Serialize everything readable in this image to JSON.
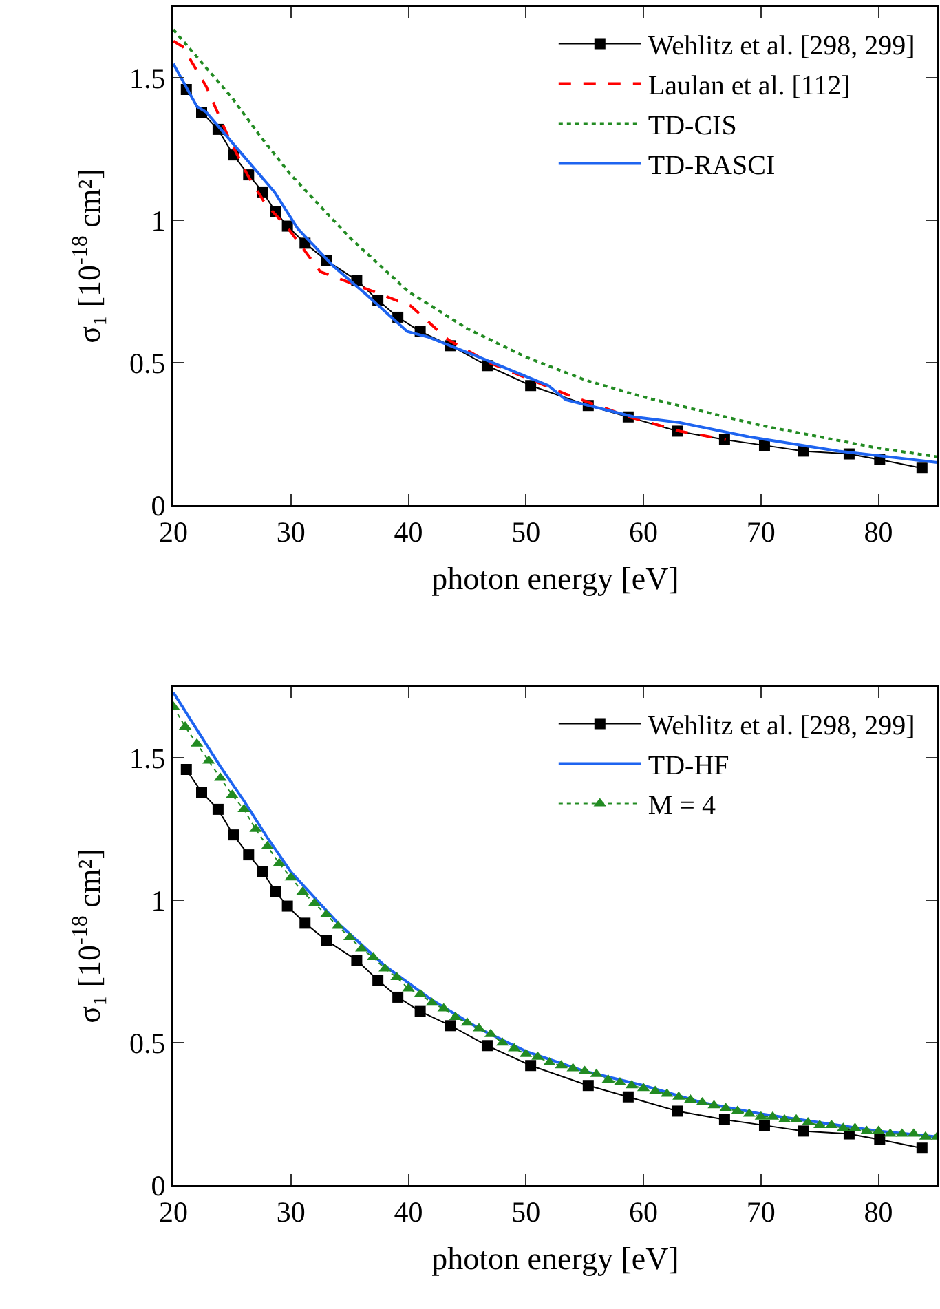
{
  "chart_data": [
    {
      "type": "line",
      "xlabel": "photon energy [eV]",
      "ylabel": "σ₁ [10$^{-18}$ cm²]",
      "xlim": [
        20,
        85
      ],
      "ylim": [
        0,
        1.75
      ],
      "xticks": [
        20,
        30,
        40,
        50,
        60,
        70,
        80
      ],
      "yticks": [
        0,
        0.5,
        1,
        1.5
      ],
      "grid": false,
      "legend": "top right",
      "series": [
        {
          "name": "Wehlitz et al. [298, 299]",
          "color": "#000000",
          "marker": "square",
          "line_style": "solid",
          "x": [
            21.1,
            22.4,
            23.8,
            25.1,
            26.4,
            27.6,
            28.7,
            29.7,
            31.2,
            33.0,
            35.6,
            37.4,
            39.1,
            41.0,
            43.6,
            46.7,
            50.4,
            55.3,
            58.7,
            62.9,
            66.9,
            70.3,
            73.6,
            77.5,
            80.1,
            83.7
          ],
          "values": [
            1.46,
            1.38,
            1.32,
            1.23,
            1.16,
            1.1,
            1.03,
            0.98,
            0.92,
            0.86,
            0.79,
            0.72,
            0.66,
            0.61,
            0.56,
            0.49,
            0.42,
            0.35,
            0.31,
            0.26,
            0.23,
            0.21,
            0.19,
            0.18,
            0.16,
            0.13
          ]
        },
        {
          "name": "Laulan et al. [112]",
          "color": "#ff0000",
          "marker": "none",
          "line_style": "dashed",
          "x": [
            20,
            20.8,
            22.8,
            24.7,
            26.3,
            27.8,
            29.8,
            32.5,
            36.4,
            40.2,
            43.4,
            46.9,
            53.4,
            58.8,
            63.1,
            67
          ],
          "values": [
            1.63,
            1.61,
            1.47,
            1.29,
            1.16,
            1.06,
            0.97,
            0.82,
            0.76,
            0.7,
            0.58,
            0.5,
            0.39,
            0.31,
            0.26,
            0.23
          ]
        },
        {
          "name": "TD-CIS",
          "color": "#228b22",
          "marker": "none",
          "line_style": "dotted",
          "x": [
            20,
            22.5,
            25,
            27.5,
            30,
            35,
            40,
            45,
            50,
            55,
            60,
            65,
            70,
            75,
            80,
            85
          ],
          "values": [
            1.67,
            1.55,
            1.43,
            1.29,
            1.16,
            0.94,
            0.75,
            0.62,
            0.52,
            0.44,
            0.38,
            0.33,
            0.28,
            0.24,
            0.2,
            0.17
          ]
        },
        {
          "name": "TD-RASCI",
          "color": "#1e64f0",
          "marker": "none",
          "line_style": "solid",
          "x": [
            20,
            22,
            22.8,
            25.9,
            28.6,
            30.6,
            33.6,
            36.4,
            39.9,
            41.7,
            46,
            51.9,
            53.4,
            59.2,
            63.1,
            69,
            76.6,
            85
          ],
          "values": [
            1.55,
            1.4,
            1.38,
            1.23,
            1.1,
            0.97,
            0.84,
            0.74,
            0.61,
            0.59,
            0.52,
            0.42,
            0.37,
            0.31,
            0.29,
            0.24,
            0.19,
            0.15
          ]
        }
      ]
    },
    {
      "type": "line",
      "xlabel": "photon energy [eV]",
      "ylabel": "σ₁ [10$^{-18}$ cm²]",
      "xlim": [
        20,
        85
      ],
      "ylim": [
        0,
        1.75
      ],
      "xticks": [
        20,
        30,
        40,
        50,
        60,
        70,
        80
      ],
      "yticks": [
        0,
        0.5,
        1,
        1.5
      ],
      "grid": false,
      "legend": "top right",
      "series": [
        {
          "name": "Wehlitz et al. [298, 299]",
          "color": "#000000",
          "marker": "square",
          "line_style": "solid",
          "x": [
            21.1,
            22.4,
            23.8,
            25.1,
            26.4,
            27.6,
            28.7,
            29.7,
            31.2,
            33.0,
            35.6,
            37.4,
            39.1,
            41.0,
            43.6,
            46.7,
            50.4,
            55.3,
            58.7,
            62.9,
            66.9,
            70.3,
            73.6,
            77.5,
            80.1,
            83.7
          ],
          "values": [
            1.46,
            1.38,
            1.32,
            1.23,
            1.16,
            1.1,
            1.03,
            0.98,
            0.92,
            0.86,
            0.79,
            0.72,
            0.66,
            0.61,
            0.56,
            0.49,
            0.42,
            0.35,
            0.31,
            0.26,
            0.23,
            0.21,
            0.19,
            0.18,
            0.16,
            0.13
          ]
        },
        {
          "name": "TD-HF",
          "color": "#1e64f0",
          "marker": "none",
          "line_style": "solid",
          "x": [
            20,
            22,
            24,
            26,
            28,
            30,
            34,
            38,
            42,
            46,
            50,
            55,
            60,
            65,
            70,
            75,
            80,
            85
          ],
          "values": [
            1.73,
            1.6,
            1.47,
            1.35,
            1.22,
            1.1,
            0.92,
            0.77,
            0.65,
            0.55,
            0.47,
            0.4,
            0.35,
            0.29,
            0.25,
            0.22,
            0.19,
            0.17
          ]
        },
        {
          "name": "M = 4",
          "color": "#228b22",
          "marker": "triangle",
          "line_style": "dotted",
          "x": [
            20,
            21,
            22,
            23,
            24,
            25,
            26,
            27,
            28,
            29,
            30,
            31,
            32,
            33,
            34,
            35,
            36,
            37,
            38,
            39,
            40,
            41,
            42,
            43,
            44,
            45,
            46,
            47,
            48,
            49,
            50,
            51,
            52,
            53,
            54,
            55,
            56,
            57,
            58,
            59,
            60,
            61,
            62,
            63,
            64,
            65,
            66,
            67,
            68,
            69,
            70,
            71,
            72,
            73,
            74,
            75,
            76,
            77,
            78,
            79,
            80,
            81,
            82,
            83,
            84,
            85
          ],
          "values": [
            1.68,
            1.61,
            1.55,
            1.49,
            1.43,
            1.37,
            1.32,
            1.25,
            1.19,
            1.13,
            1.08,
            1.03,
            0.99,
            0.95,
            0.91,
            0.87,
            0.83,
            0.8,
            0.76,
            0.73,
            0.69,
            0.67,
            0.64,
            0.62,
            0.59,
            0.57,
            0.55,
            0.53,
            0.5,
            0.48,
            0.46,
            0.45,
            0.43,
            0.42,
            0.41,
            0.4,
            0.39,
            0.37,
            0.36,
            0.35,
            0.34,
            0.33,
            0.32,
            0.31,
            0.3,
            0.29,
            0.28,
            0.27,
            0.26,
            0.25,
            0.24,
            0.24,
            0.23,
            0.23,
            0.22,
            0.21,
            0.21,
            0.2,
            0.2,
            0.19,
            0.19,
            0.18,
            0.18,
            0.18,
            0.17,
            0.17
          ]
        }
      ]
    }
  ]
}
